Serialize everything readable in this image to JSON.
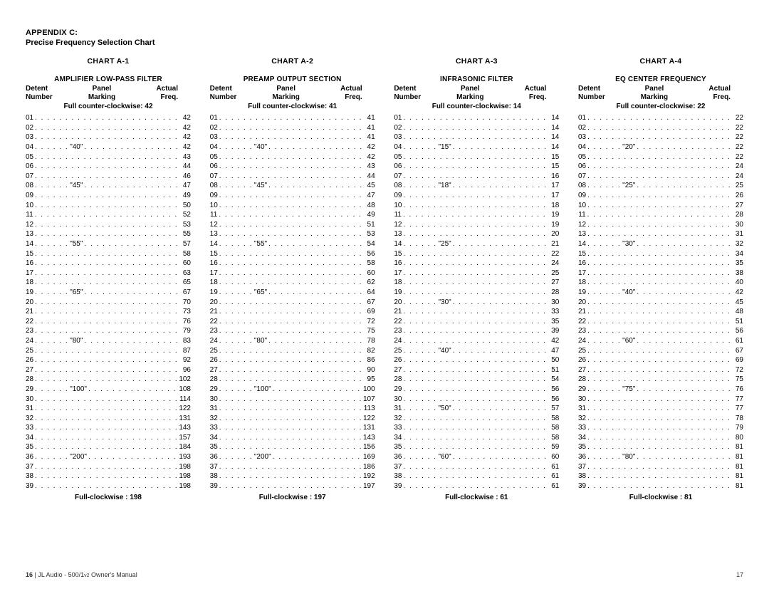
{
  "appendix_label": "APPENDIX C:",
  "appendix_title": "Precise Frequency Selection Chart",
  "header_cols": {
    "c1a": "Detent",
    "c1b": "Number",
    "c2a": "Panel",
    "c2b": "Marking",
    "c3a": "Actual",
    "c3b": "Freq."
  },
  "ccw_prefix": "Full counter-clockwise: ",
  "cw_prefix": "Full-clockwise : ",
  "footer_left_page": "16",
  "footer_left_sep": "  |  ",
  "footer_left_brand": "JL Audio - 500/1",
  "footer_left_rev": "v2",
  "footer_left_tail": " Owner's Manual",
  "footer_right_page": "17",
  "charts": [
    {
      "title": "CHART A-1",
      "sub": "AMPLIFIER LOW-PASS FILTER",
      "ccw": "42",
      "cw": "198",
      "rows": [
        {
          "n": "01",
          "m": "",
          "f": "42"
        },
        {
          "n": "02",
          "m": "",
          "f": "42"
        },
        {
          "n": "03",
          "m": "",
          "f": "42"
        },
        {
          "n": "04",
          "m": "\"40\"",
          "f": "42"
        },
        {
          "n": "05",
          "m": "",
          "f": "43"
        },
        {
          "n": "06",
          "m": "",
          "f": "44"
        },
        {
          "n": "07",
          "m": "",
          "f": "46"
        },
        {
          "n": "08",
          "m": "\"45\"",
          "f": "47"
        },
        {
          "n": "09",
          "m": "",
          "f": "49"
        },
        {
          "n": "10",
          "m": "",
          "f": "50"
        },
        {
          "n": "11",
          "m": "",
          "f": "52"
        },
        {
          "n": "12",
          "m": "",
          "f": "53"
        },
        {
          "n": "13",
          "m": "",
          "f": "55"
        },
        {
          "n": "14",
          "m": "\"55\"",
          "f": "57"
        },
        {
          "n": "15",
          "m": "",
          "f": "58"
        },
        {
          "n": "16",
          "m": "",
          "f": "60"
        },
        {
          "n": "17",
          "m": "",
          "f": "63"
        },
        {
          "n": "18",
          "m": "",
          "f": "65"
        },
        {
          "n": "19",
          "m": "\"65\"",
          "f": "67"
        },
        {
          "n": "20",
          "m": "",
          "f": "70"
        },
        {
          "n": "21",
          "m": "",
          "f": "73"
        },
        {
          "n": "22",
          "m": "",
          "f": "76"
        },
        {
          "n": "23",
          "m": "",
          "f": "79"
        },
        {
          "n": "24",
          "m": "\"80\"",
          "f": "83"
        },
        {
          "n": "25",
          "m": "",
          "f": "87"
        },
        {
          "n": "26",
          "m": "",
          "f": "92"
        },
        {
          "n": "27",
          "m": "",
          "f": "96"
        },
        {
          "n": "28",
          "m": "",
          "f": "102"
        },
        {
          "n": "29",
          "m": "\"100\"",
          "f": "108"
        },
        {
          "n": "30",
          "m": "",
          "f": "114"
        },
        {
          "n": "31",
          "m": "",
          "f": "122"
        },
        {
          "n": "32",
          "m": "",
          "f": "131"
        },
        {
          "n": "33",
          "m": "",
          "f": "143"
        },
        {
          "n": "34",
          "m": "",
          "f": "157"
        },
        {
          "n": "35",
          "m": "",
          "f": "184"
        },
        {
          "n": "36",
          "m": "\"200\"",
          "f": "193"
        },
        {
          "n": "37",
          "m": "",
          "f": "198"
        },
        {
          "n": "38",
          "m": "",
          "f": "198"
        },
        {
          "n": "39",
          "m": "",
          "f": "198"
        }
      ]
    },
    {
      "title": "CHART A-2",
      "sub": "PREAMP OUTPUT SECTION",
      "ccw": "41",
      "cw": "197",
      "rows": [
        {
          "n": "01",
          "m": "",
          "f": "41"
        },
        {
          "n": "02",
          "m": "",
          "f": "41"
        },
        {
          "n": "03",
          "m": "",
          "f": "41"
        },
        {
          "n": "04",
          "m": "\"40\"",
          "f": "42"
        },
        {
          "n": "05",
          "m": "",
          "f": "42"
        },
        {
          "n": "06",
          "m": "",
          "f": "43"
        },
        {
          "n": "07",
          "m": "",
          "f": "44"
        },
        {
          "n": "08",
          "m": "\"45\"",
          "f": "45"
        },
        {
          "n": "09",
          "m": "",
          "f": "47"
        },
        {
          "n": "10",
          "m": "",
          "f": "48"
        },
        {
          "n": "11",
          "m": "",
          "f": "49"
        },
        {
          "n": "12",
          "m": "",
          "f": "51"
        },
        {
          "n": "13",
          "m": "",
          "f": "53"
        },
        {
          "n": "14",
          "m": "\"55\"",
          "f": "54"
        },
        {
          "n": "15",
          "m": "",
          "f": "56"
        },
        {
          "n": "16",
          "m": "",
          "f": "58"
        },
        {
          "n": "17",
          "m": "",
          "f": "60"
        },
        {
          "n": "18",
          "m": "",
          "f": "62"
        },
        {
          "n": "19",
          "m": "\"65\"",
          "f": "64"
        },
        {
          "n": "20",
          "m": "",
          "f": "67"
        },
        {
          "n": "21",
          "m": "",
          "f": "69"
        },
        {
          "n": "22",
          "m": "",
          "f": "72"
        },
        {
          "n": "23",
          "m": "",
          "f": "75"
        },
        {
          "n": "24",
          "m": "\"80\"",
          "f": "78"
        },
        {
          "n": "25",
          "m": "",
          "f": "82"
        },
        {
          "n": "26",
          "m": "",
          "f": "86"
        },
        {
          "n": "27",
          "m": "",
          "f": "90"
        },
        {
          "n": "28",
          "m": "",
          "f": "95"
        },
        {
          "n": "29",
          "m": "\"100\"",
          "f": "100"
        },
        {
          "n": "30",
          "m": "",
          "f": "107"
        },
        {
          "n": "31",
          "m": "",
          "f": "113"
        },
        {
          "n": "32",
          "m": "",
          "f": "122"
        },
        {
          "n": "33",
          "m": "",
          "f": "131"
        },
        {
          "n": "34",
          "m": "",
          "f": "143"
        },
        {
          "n": "35",
          "m": "",
          "f": "156"
        },
        {
          "n": "36",
          "m": "\"200\"",
          "f": "169"
        },
        {
          "n": "37",
          "m": "",
          "f": "186"
        },
        {
          "n": "38",
          "m": "",
          "f": "192"
        },
        {
          "n": "39",
          "m": "",
          "f": "197"
        }
      ]
    },
    {
      "title": "CHART A-3",
      "sub": "INFRASONIC FILTER",
      "ccw": "14",
      "cw": "61",
      "rows": [
        {
          "n": "01",
          "m": "",
          "f": "14"
        },
        {
          "n": "02",
          "m": "",
          "f": "14"
        },
        {
          "n": "03",
          "m": "",
          "f": "14"
        },
        {
          "n": "04",
          "m": "\"15\"",
          "f": "14"
        },
        {
          "n": "05",
          "m": "",
          "f": "15"
        },
        {
          "n": "06",
          "m": "",
          "f": "15"
        },
        {
          "n": "07",
          "m": "",
          "f": "16"
        },
        {
          "n": "08",
          "m": "\"18\"",
          "f": "17"
        },
        {
          "n": "09",
          "m": "",
          "f": "17"
        },
        {
          "n": "10",
          "m": "",
          "f": "18"
        },
        {
          "n": "11",
          "m": "",
          "f": "19"
        },
        {
          "n": "12",
          "m": "",
          "f": "19"
        },
        {
          "n": "13",
          "m": "",
          "f": "20"
        },
        {
          "n": "14",
          "m": "\"25\"",
          "f": "21"
        },
        {
          "n": "15",
          "m": "",
          "f": "22"
        },
        {
          "n": "16",
          "m": "",
          "f": "24"
        },
        {
          "n": "17",
          "m": "",
          "f": "25"
        },
        {
          "n": "18",
          "m": "",
          "f": "27"
        },
        {
          "n": "19",
          "m": "",
          "f": "28"
        },
        {
          "n": "20",
          "m": "\"30\"",
          "f": "30"
        },
        {
          "n": "21",
          "m": "",
          "f": "33"
        },
        {
          "n": "22",
          "m": "",
          "f": "35"
        },
        {
          "n": "23",
          "m": "",
          "f": "39"
        },
        {
          "n": "24",
          "m": "",
          "f": "42"
        },
        {
          "n": "25",
          "m": "\"40\"",
          "f": "47"
        },
        {
          "n": "26",
          "m": "",
          "f": "50"
        },
        {
          "n": "27",
          "m": "",
          "f": "51"
        },
        {
          "n": "28",
          "m": "",
          "f": "54"
        },
        {
          "n": "29",
          "m": "",
          "f": "56"
        },
        {
          "n": "30",
          "m": "",
          "f": "56"
        },
        {
          "n": "31",
          "m": "\"50\"",
          "f": "57"
        },
        {
          "n": "32",
          "m": "",
          "f": "58"
        },
        {
          "n": "33",
          "m": "",
          "f": "58"
        },
        {
          "n": "34",
          "m": "",
          "f": "58"
        },
        {
          "n": "35",
          "m": "",
          "f": "59"
        },
        {
          "n": "36",
          "m": "\"60\"",
          "f": "60"
        },
        {
          "n": "37",
          "m": "",
          "f": "61"
        },
        {
          "n": "38",
          "m": "",
          "f": "61"
        },
        {
          "n": "39",
          "m": "",
          "f": "61"
        }
      ]
    },
    {
      "title": "CHART A-4",
      "sub": "EQ CENTER FREQUENCY",
      "ccw": "22",
      "cw": "81",
      "rows": [
        {
          "n": "01",
          "m": "",
          "f": "22"
        },
        {
          "n": "02",
          "m": "",
          "f": "22"
        },
        {
          "n": "03",
          "m": "",
          "f": "22"
        },
        {
          "n": "04",
          "m": "\"20\"",
          "f": "22"
        },
        {
          "n": "05",
          "m": "",
          "f": "22"
        },
        {
          "n": "06",
          "m": "",
          "f": "24"
        },
        {
          "n": "07",
          "m": "",
          "f": "24"
        },
        {
          "n": "08",
          "m": "\"25\"",
          "f": "25"
        },
        {
          "n": "09",
          "m": "",
          "f": "26"
        },
        {
          "n": "10",
          "m": "",
          "f": "27"
        },
        {
          "n": "11",
          "m": "",
          "f": "28"
        },
        {
          "n": "12",
          "m": "",
          "f": "30"
        },
        {
          "n": "13",
          "m": "",
          "f": "31"
        },
        {
          "n": "14",
          "m": "\"30\"",
          "f": "32"
        },
        {
          "n": "15",
          "m": "",
          "f": "34"
        },
        {
          "n": "16",
          "m": "",
          "f": "35"
        },
        {
          "n": "17",
          "m": "",
          "f": "38"
        },
        {
          "n": "18",
          "m": "",
          "f": "40"
        },
        {
          "n": "19",
          "m": "\"40\"",
          "f": "42"
        },
        {
          "n": "20",
          "m": "",
          "f": "45"
        },
        {
          "n": "21",
          "m": "",
          "f": "48"
        },
        {
          "n": "22",
          "m": "",
          "f": "51"
        },
        {
          "n": "23",
          "m": "",
          "f": "56"
        },
        {
          "n": "24",
          "m": "\"60\"",
          "f": "61"
        },
        {
          "n": "25",
          "m": "",
          "f": "67"
        },
        {
          "n": "26",
          "m": "",
          "f": "69"
        },
        {
          "n": "27",
          "m": "",
          "f": "72"
        },
        {
          "n": "28",
          "m": "",
          "f": "75"
        },
        {
          "n": "29",
          "m": "\"75\"",
          "f": "76"
        },
        {
          "n": "30",
          "m": "",
          "f": "77"
        },
        {
          "n": "31",
          "m": "",
          "f": "77"
        },
        {
          "n": "32",
          "m": "",
          "f": "78"
        },
        {
          "n": "33",
          "m": "",
          "f": "79"
        },
        {
          "n": "34",
          "m": "",
          "f": "80"
        },
        {
          "n": "35",
          "m": "",
          "f": "81"
        },
        {
          "n": "36",
          "m": "\"80\"",
          "f": "81"
        },
        {
          "n": "37",
          "m": "",
          "f": "81"
        },
        {
          "n": "38",
          "m": "",
          "f": "81"
        },
        {
          "n": "39",
          "m": "",
          "f": "81"
        }
      ]
    }
  ]
}
